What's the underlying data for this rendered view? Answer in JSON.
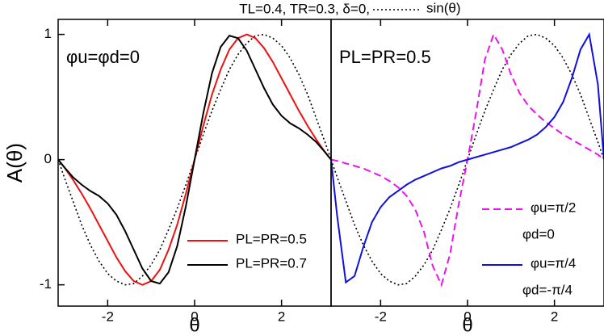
{
  "chart_data": [
    {
      "type": "line",
      "title": "TL=0.4, TR=0.3, δ=0,",
      "annotation": "φu=φd=0",
      "ylabel": "A(θ)",
      "xlabel": "θ",
      "x": [
        -3.14,
        -3.0,
        -2.8,
        -2.6,
        -2.4,
        -2.2,
        -2.0,
        -1.8,
        -1.6,
        -1.4,
        -1.2,
        -1.0,
        -0.8,
        -0.6,
        -0.4,
        -0.2,
        0,
        0.2,
        0.4,
        0.6,
        0.8,
        1.0,
        1.2,
        1.4,
        1.6,
        1.8,
        2.0,
        2.2,
        2.4,
        2.6,
        2.8,
        3.0,
        3.14
      ],
      "xlim": [
        -3.14,
        3.14
      ],
      "xticks": [
        -2,
        0,
        2
      ],
      "ylim": [
        -1.17,
        1.12
      ],
      "yticks": [
        -1,
        0,
        1
      ],
      "series": [
        {
          "name": "sin(θ)",
          "color": "#000000",
          "dash": "dotted",
          "values": [
            0,
            -0.14,
            -0.33,
            -0.52,
            -0.68,
            -0.81,
            -0.91,
            -0.97,
            -1.0,
            -0.99,
            -0.93,
            -0.84,
            -0.72,
            -0.56,
            -0.39,
            -0.2,
            0,
            0.2,
            0.39,
            0.56,
            0.72,
            0.84,
            0.93,
            0.99,
            1.0,
            0.97,
            0.91,
            0.81,
            0.68,
            0.52,
            0.33,
            0.14,
            0
          ]
        },
        {
          "name": "PL=PR=0.5",
          "color": "#ee1111",
          "dash": "solid",
          "values": [
            0,
            -0.06,
            -0.16,
            -0.27,
            -0.39,
            -0.52,
            -0.65,
            -0.78,
            -0.89,
            -0.97,
            -1.0,
            -0.97,
            -0.88,
            -0.72,
            -0.52,
            -0.27,
            0,
            0.27,
            0.52,
            0.72,
            0.88,
            0.97,
            1.0,
            0.97,
            0.89,
            0.78,
            0.65,
            0.52,
            0.39,
            0.27,
            0.16,
            0.06,
            0
          ]
        },
        {
          "name": "PL=PR=0.7",
          "color": "#000000",
          "dash": "solid",
          "values": [
            0,
            -0.06,
            -0.14,
            -0.2,
            -0.25,
            -0.29,
            -0.35,
            -0.44,
            -0.57,
            -0.72,
            -0.87,
            -0.97,
            -0.99,
            -0.9,
            -0.69,
            -0.37,
            0,
            0.37,
            0.69,
            0.9,
            0.99,
            0.97,
            0.87,
            0.72,
            0.57,
            0.44,
            0.35,
            0.29,
            0.25,
            0.2,
            0.14,
            0.06,
            0
          ]
        }
      ]
    },
    {
      "type": "line",
      "annotation": "PL=PR=0.5",
      "xlabel": "θ",
      "x": [
        -3.14,
        -3.0,
        -2.8,
        -2.6,
        -2.4,
        -2.2,
        -2.0,
        -1.8,
        -1.6,
        -1.4,
        -1.2,
        -1.0,
        -0.8,
        -0.6,
        -0.4,
        -0.2,
        0,
        0.2,
        0.4,
        0.6,
        0.8,
        1.0,
        1.2,
        1.4,
        1.6,
        1.8,
        2.0,
        2.2,
        2.4,
        2.6,
        2.8,
        3.0,
        3.14
      ],
      "xlim": [
        -3.14,
        3.14
      ],
      "xticks": [
        -2,
        0,
        2
      ],
      "ylim": [
        -1.17,
        1.12
      ],
      "series": [
        {
          "color": "#000000",
          "dash": "dotted",
          "values": [
            0,
            -0.14,
            -0.33,
            -0.52,
            -0.68,
            -0.81,
            -0.91,
            -0.97,
            -1.0,
            -0.99,
            -0.93,
            -0.84,
            -0.72,
            -0.56,
            -0.39,
            -0.2,
            0,
            0.2,
            0.39,
            0.56,
            0.72,
            0.84,
            0.93,
            0.99,
            1.0,
            0.97,
            0.91,
            0.81,
            0.68,
            0.52,
            0.33,
            0.14,
            0
          ]
        },
        {
          "name": [
            "φu=π/2",
            "φd=0"
          ],
          "color": "#ee11ee",
          "dash": "dashed",
          "values": [
            0,
            -0.01,
            -0.03,
            -0.05,
            -0.07,
            -0.1,
            -0.13,
            -0.17,
            -0.22,
            -0.29,
            -0.4,
            -0.58,
            -0.85,
            -1.0,
            -0.75,
            -0.35,
            0,
            0.38,
            0.8,
            1.0,
            0.88,
            0.68,
            0.53,
            0.43,
            0.36,
            0.3,
            0.25,
            0.2,
            0.16,
            0.12,
            0.08,
            0.04,
            0
          ]
        },
        {
          "name": [
            "φu=π/4",
            "φd=-π/4"
          ],
          "color": "#1010dd",
          "dash": "solid",
          "values": [
            0,
            -0.45,
            -0.98,
            -0.93,
            -0.7,
            -0.5,
            -0.38,
            -0.3,
            -0.25,
            -0.2,
            -0.16,
            -0.13,
            -0.1,
            -0.07,
            -0.05,
            -0.02,
            0,
            0.02,
            0.04,
            0.06,
            0.08,
            0.1,
            0.13,
            0.16,
            0.2,
            0.26,
            0.34,
            0.46,
            0.65,
            0.88,
            1.0,
            0.6,
            0
          ]
        }
      ]
    }
  ]
}
